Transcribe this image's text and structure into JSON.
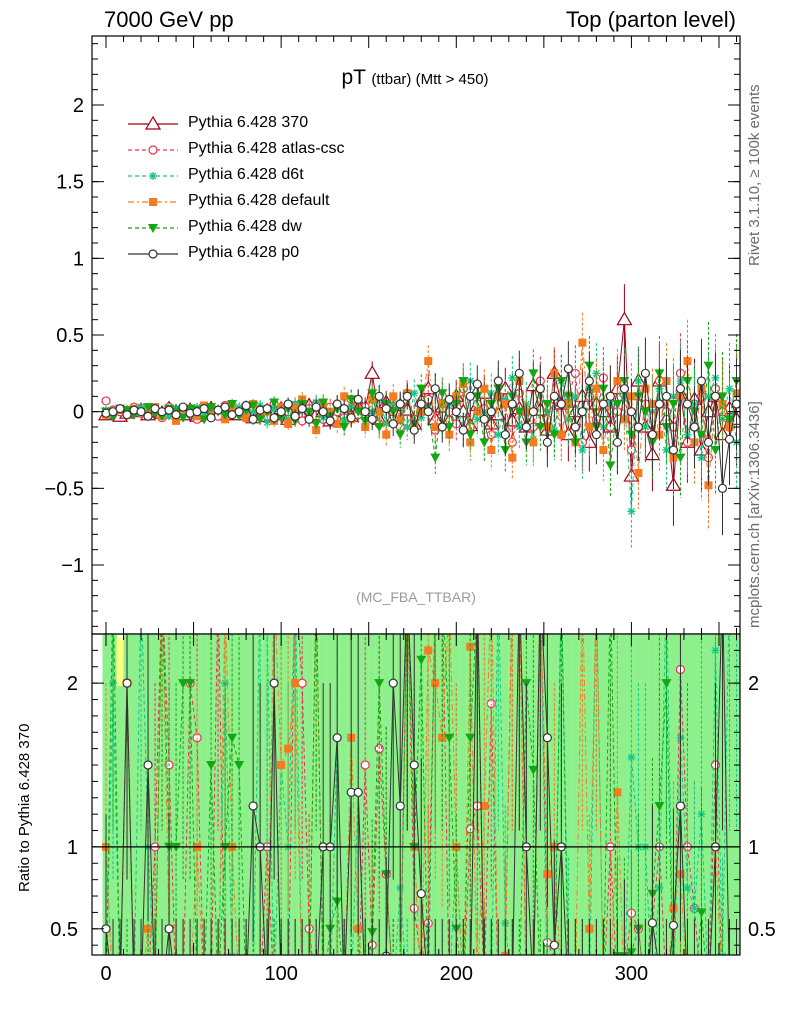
{
  "header": {
    "left": "7000 GeV pp",
    "right": "Top (parton level)"
  },
  "side": {
    "rivet": "Rivet 3.1.10, ≥ 100k events",
    "mcplots": "mcplots.cern.ch [arXiv:1306.3436]"
  },
  "chart_data": {
    "type": "scatter",
    "title": "pT",
    "title_sub": "(ttbar) (Mtt > 450)",
    "watermark": "(MC_FBA_TTBAR)",
    "ratio_ylabel": "Ratio to Pythia 6.428 370",
    "xlim": [
      -8,
      362
    ],
    "ylim": [
      -1.45,
      2.45
    ],
    "ratio_ylim": [
      0.34,
      2.3
    ],
    "x_ticks": [
      0,
      100,
      200,
      300
    ],
    "y_ticks": [
      -1,
      -0.5,
      0,
      0.5,
      1,
      1.5,
      2
    ],
    "ratio_y_ticks": [
      0.5,
      1,
      2
    ],
    "x_start": 0,
    "x_step": 4,
    "reference_series": "Pythia 6.428 370",
    "series": [
      {
        "name": "Pythia 6.428 370",
        "color": "#a0001a",
        "marker": "triangle-open",
        "dash": "solid",
        "values": [
          -0.02,
          -0.01,
          -0.03,
          -0.01,
          0.0,
          0.01,
          -0.02,
          0.0,
          -0.01,
          0.02,
          0.0,
          -0.02,
          0.01,
          -0.03,
          0.0,
          0.02,
          -0.01,
          -0.02,
          0.03,
          -0.02,
          0.0,
          -0.04,
          0.01,
          -0.03,
          -0.02,
          0.02,
          -0.05,
          0.01,
          -0.03,
          0.04,
          -0.02,
          0.0,
          -0.06,
          0.03,
          0.0,
          -0.03,
          0.06,
          0.02,
          0.25,
          -0.05,
          0.06,
          -0.04,
          0.04,
          0.01,
          -0.08,
          0.07,
          0.15,
          -0.05,
          0.03,
          -0.06,
          0.1,
          0.0,
          -0.09,
          0.04,
          0.12,
          -0.08,
          -0.02,
          0.15,
          -0.06,
          0.02,
          -0.1,
          0.17,
          0.01,
          -0.12,
          0.25,
          0.05,
          -0.15,
          0.0,
          0.1,
          -0.2,
          0.05,
          0.0,
          -0.1,
          0.15,
          0.6,
          -0.42,
          0.2,
          -0.1,
          -0.28,
          0.2,
          -0.05,
          -0.48,
          0.12,
          -0.2,
          0.08,
          -0.25,
          0.0,
          0.1,
          -0.15,
          0.02,
          -0.05
        ]
      },
      {
        "name": "Pythia 6.428 atlas-csc",
        "color": "#ee3050",
        "marker": "circle-open",
        "dash": "dashed",
        "values": [
          0.07,
          0.01,
          0.0,
          -0.02,
          0.03,
          -0.01,
          0.02,
          0.0,
          -0.04,
          0.03,
          -0.02,
          0.01,
          0.02,
          -0.05,
          0.03,
          0.0,
          -0.03,
          0.04,
          -0.01,
          0.01,
          -0.04,
          0.02,
          0.0,
          -0.03,
          0.05,
          -0.02,
          0.0,
          0.04,
          -0.06,
          0.02,
          0.05,
          -0.05,
          0.03,
          0.0,
          -0.04,
          0.08,
          -0.02,
          0.03,
          0.1,
          -0.08,
          0.05,
          0.0,
          -0.1,
          0.12,
          -0.05,
          0.02,
          0.08,
          -0.12,
          0.1,
          0.0,
          -0.08,
          0.15,
          -0.1,
          0.05,
          0.02,
          -0.15,
          0.1,
          0.05,
          -0.2,
          0.12,
          0.0,
          -0.1,
          0.2,
          -0.05,
          0.08,
          -0.15,
          0.1,
          0.25,
          -0.2,
          0.1,
          -0.05,
          0.22,
          -0.1,
          0.0,
          0.15,
          -0.25,
          0.1,
          0.05,
          -0.15,
          0.2,
          0.0,
          -0.1,
          0.25,
          -0.2,
          0.05,
          0.1,
          -0.3,
          0.15,
          0.0,
          -0.1,
          0.05
        ]
      },
      {
        "name": "Pythia 6.428 d6t",
        "color": "#10c888",
        "marker": "asterisk",
        "dash": "dashed",
        "values": [
          0.01,
          -0.02,
          0.02,
          0.0,
          -0.01,
          0.03,
          -0.02,
          0.01,
          0.0,
          -0.03,
          0.02,
          0.01,
          -0.02,
          0.03,
          -0.01,
          0.0,
          0.02,
          -0.04,
          0.01,
          0.03,
          -0.02,
          0.0,
          0.04,
          -0.07,
          0.02,
          0.03,
          -0.05,
          0.05,
          0.02,
          -0.03,
          0.06,
          -0.04,
          0.0,
          0.05,
          -0.06,
          0.03,
          0.08,
          -0.05,
          0.0,
          0.1,
          -0.08,
          0.05,
          0.03,
          -0.1,
          0.12,
          -0.04,
          0.0,
          0.15,
          -0.1,
          0.05,
          0.1,
          -0.12,
          0.2,
          -0.05,
          0.0,
          0.12,
          -0.15,
          0.08,
          0.22,
          -0.1,
          0.05,
          -0.18,
          0.15,
          0.0,
          -0.12,
          0.2,
          -0.05,
          0.1,
          -0.25,
          0.15,
          0.25,
          -0.1,
          0.05,
          -0.2,
          0.1,
          -0.65,
          0.2,
          -0.1,
          0.0,
          0.15,
          -0.25,
          0.1,
          0.2,
          -0.15,
          0.05,
          -0.3,
          0.1,
          0.22,
          -0.05,
          0.15,
          -0.2
        ]
      },
      {
        "name": "Pythia 6.428 default",
        "color": "#f57a20",
        "marker": "square",
        "dash": "dashdot",
        "values": [
          -0.02,
          0.0,
          0.01,
          -0.02,
          0.02,
          0.0,
          -0.01,
          0.03,
          -0.03,
          0.01,
          -0.06,
          0.02,
          0.0,
          -0.03,
          0.04,
          -0.02,
          0.01,
          -0.05,
          0.03,
          0.0,
          -0.04,
          0.05,
          -0.02,
          0.0,
          -0.06,
          0.03,
          -0.08,
          0.02,
          0.08,
          -0.04,
          -0.12,
          0.05,
          0.0,
          -0.08,
          0.1,
          -0.05,
          0.03,
          -0.1,
          0.08,
          0.0,
          -0.15,
          0.1,
          -0.05,
          0.12,
          -0.08,
          0.0,
          0.33,
          -0.1,
          0.05,
          -0.15,
          0.1,
          0.18,
          -0.2,
          0.0,
          0.15,
          -0.25,
          0.1,
          0.05,
          -0.3,
          0.2,
          0.0,
          -0.2,
          0.15,
          -0.1,
          0.25,
          -0.15,
          0.05,
          -0.2,
          0.45,
          -0.1,
          0.15,
          -0.25,
          0.1,
          0.2,
          -0.05,
          0.1,
          -0.4,
          0.15,
          0.05,
          -0.15,
          0.2,
          -0.3,
          0.1,
          0.33,
          -0.2,
          0.15,
          -0.48,
          0.1,
          0.05,
          -0.1,
          0.12
        ]
      },
      {
        "name": "Pythia 6.428 dw",
        "color": "#12a812",
        "marker": "triangle-down",
        "dash": "dashed",
        "values": [
          0.0,
          -0.03,
          0.02,
          0.01,
          -0.02,
          0.0,
          0.03,
          -0.01,
          -0.03,
          0.02,
          0.0,
          -0.04,
          0.02,
          0.01,
          -0.05,
          0.03,
          0.0,
          -0.02,
          0.05,
          -0.03,
          0.01,
          0.04,
          -0.05,
          0.0,
          0.06,
          -0.04,
          0.02,
          -0.06,
          0.05,
          0.0,
          -0.08,
          0.06,
          -0.03,
          0.02,
          -0.1,
          0.08,
          0.0,
          -0.06,
          0.12,
          -0.1,
          0.05,
          0.0,
          -0.15,
          0.1,
          -0.08,
          0.15,
          0.0,
          -0.3,
          0.12,
          -0.1,
          0.05,
          0.2,
          -0.15,
          0.1,
          -0.2,
          0.05,
          0.15,
          -0.25,
          0.1,
          0.0,
          -0.2,
          0.25,
          -0.1,
          0.05,
          -0.15,
          0.2,
          0.1,
          -0.2,
          0.0,
          0.3,
          -0.1,
          0.15,
          -0.35,
          0.05,
          0.2,
          -0.15,
          0.1,
          0.0,
          -0.2,
          0.25,
          -0.1,
          0.05,
          -0.3,
          0.2,
          0.0,
          -0.15,
          0.3,
          -0.25,
          0.1,
          -0.05,
          0.2
        ]
      },
      {
        "name": "Pythia 6.428 p0",
        "color": "#333333",
        "marker": "circle-open",
        "dash": "solid",
        "values": [
          -0.01,
          0.0,
          0.02,
          -0.02,
          0.01,
          0.0,
          -0.03,
          0.02,
          0.0,
          0.01,
          -0.02,
          0.03,
          -0.01,
          0.0,
          0.02,
          -0.04,
          0.01,
          0.03,
          -0.02,
          0.0,
          0.04,
          -0.05,
          0.01,
          0.02,
          -0.04,
          0.0,
          0.05,
          -0.03,
          0.02,
          -0.05,
          0.03,
          0.0,
          -0.06,
          0.05,
          0.02,
          -0.04,
          0.08,
          0.0,
          -0.05,
          0.1,
          0.02,
          -0.08,
          0.05,
          0.1,
          -0.12,
          0.05,
          0.0,
          0.15,
          -0.1,
          0.08,
          0.0,
          -0.12,
          0.1,
          0.18,
          -0.05,
          0.0,
          0.2,
          -0.15,
          0.05,
          0.25,
          -0.1,
          0.0,
          0.15,
          -0.2,
          0.1,
          0.05,
          0.28,
          -0.1,
          0.0,
          0.2,
          -0.15,
          0.05,
          0.1,
          -0.2,
          0.15,
          0.0,
          -0.1,
          0.25,
          -0.15,
          0.05,
          0.1,
          -0.25,
          0.15,
          0.05,
          -0.1,
          0.2,
          -0.2,
          0.1,
          -0.5,
          -0.18,
          0.05
        ]
      }
    ]
  }
}
